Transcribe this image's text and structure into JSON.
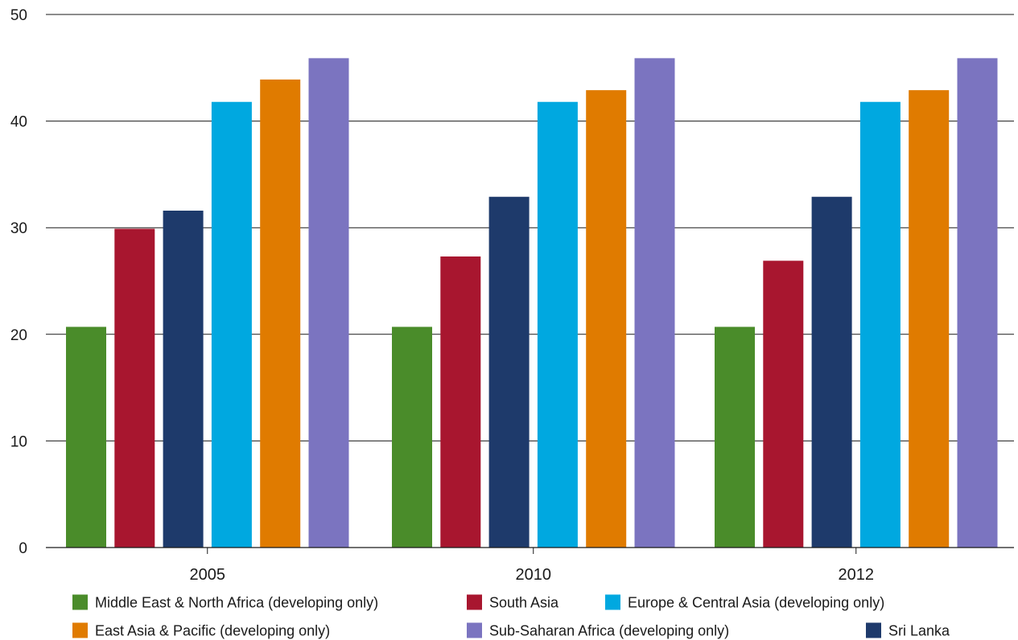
{
  "chart_data": {
    "type": "bar",
    "title": "",
    "xlabel": "",
    "ylabel": "",
    "ylim": [
      0,
      50
    ],
    "yticks": [
      0,
      10,
      20,
      30,
      40,
      50
    ],
    "grid": true,
    "legend_position": "bottom",
    "categories": [
      "2005",
      "2010",
      "2012"
    ],
    "series": [
      {
        "name": "Middle East & North Africa (developing only)",
        "color": "#4a8c2a",
        "values": [
          20.7,
          20.7,
          20.7
        ]
      },
      {
        "name": "South Asia",
        "color": "#a8162f",
        "values": [
          29.9,
          27.3,
          26.9
        ]
      },
      {
        "name": "Sri Lanka",
        "color": "#1e3a6b",
        "values": [
          31.6,
          32.9,
          32.9
        ]
      },
      {
        "name": "Europe & Central Asia (developing only)",
        "color": "#00a8e0",
        "values": [
          41.8,
          41.8,
          41.8
        ]
      },
      {
        "name": "East Asia & Pacific (developing only)",
        "color": "#e07b00",
        "values": [
          43.9,
          42.9,
          42.9
        ]
      },
      {
        "name": "Sub-Saharan Africa (developing only)",
        "color": "#7b74c0",
        "values": [
          45.9,
          45.9,
          45.9
        ]
      }
    ],
    "legend_order": [
      [
        "Middle East & North Africa (developing only)",
        "South Asia",
        "Europe & Central Asia (developing only)"
      ],
      [
        "East Asia & Pacific (developing only)",
        "Sub-Saharan Africa (developing only)",
        "Sri Lanka"
      ]
    ]
  }
}
